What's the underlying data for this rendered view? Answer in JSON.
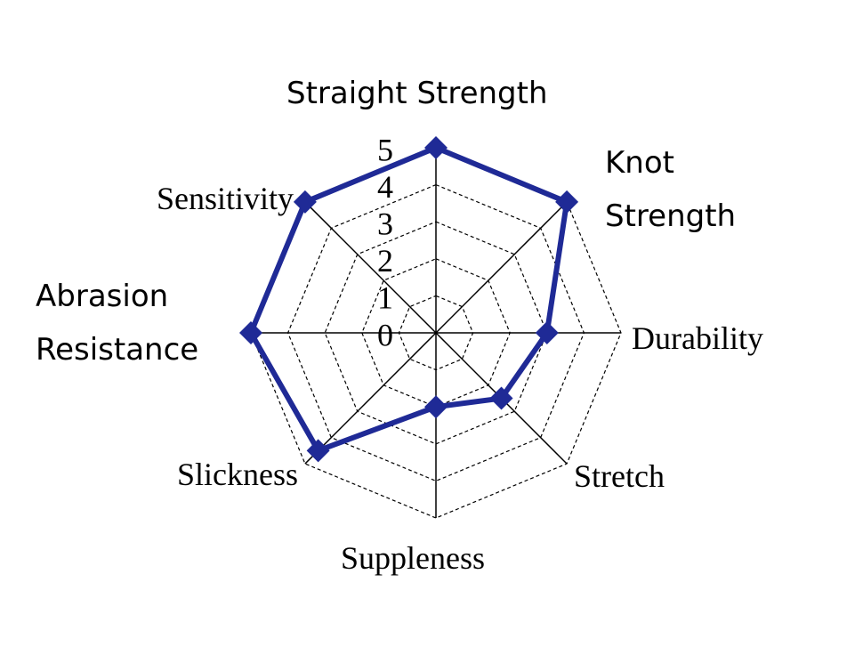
{
  "chart_data": {
    "type": "radar",
    "categories": [
      "Straight Strength",
      "Knot Strength",
      "Durability",
      "Stretch",
      "Suppleness",
      "Slickness",
      "Abrasion Resistance",
      "Sensitivity"
    ],
    "series": [
      {
        "color": "#1f2a96",
        "values": [
          5,
          5,
          3,
          2.5,
          2,
          4.5,
          5,
          5
        ]
      }
    ],
    "ylim": [
      0,
      5
    ],
    "yticks": [
      0,
      1,
      2,
      3,
      4,
      5
    ],
    "grid": true
  }
}
